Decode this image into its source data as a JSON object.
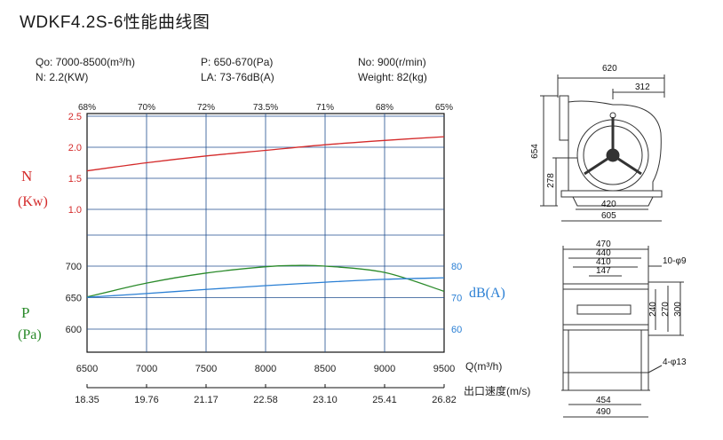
{
  "title": "WDKF4.2S-6性能曲线图",
  "specs": {
    "flow": "Qo: 7000-8500(m³/h)",
    "power": "N: 2.2(KW)",
    "pressure": "P: 650-670(Pa)",
    "noise": "LA: 73-76dB(A)",
    "speed": "No: 900(r/min)",
    "weight": "Weight: 82(kg)"
  },
  "colors": {
    "power": "#d42a2a",
    "pressure": "#2a8a2a",
    "noise": "#2a7fd4",
    "grid": "#1f4e8f",
    "axis": "#111111"
  },
  "chart_data": {
    "type": "line",
    "x_label": "Q(m³/h)",
    "x": [
      6500,
      7000,
      7500,
      8000,
      8500,
      9000,
      9500
    ],
    "x_tick_labels": [
      "6500",
      "7000",
      "7500",
      "8000",
      "8500",
      "9000",
      "9500"
    ],
    "efficiency_labels": [
      "68%",
      "70%",
      "72%",
      "73.5%",
      "71%",
      "68%",
      "65%"
    ],
    "outlet_velocity": {
      "label": "出口速度(m/s)",
      "values": [
        "18.35",
        "19.76",
        "21.17",
        "22.58",
        "23.10",
        "25.41",
        "26.82"
      ]
    },
    "n_axis": {
      "label_line1": "N",
      "label_line2": "(Kw)",
      "ticks": [
        "2.5",
        "2.0",
        "1.5",
        "1.0"
      ],
      "range": [
        1.0,
        2.5
      ]
    },
    "p_axis": {
      "label_line1": "P",
      "label_line2": "(Pa)",
      "ticks": [
        "700",
        "650",
        "600"
      ],
      "range": [
        600,
        700
      ]
    },
    "db_axis": {
      "label": "dB(A)",
      "ticks": [
        "80",
        "70",
        "60"
      ],
      "range": [
        60,
        80
      ]
    },
    "series": [
      {
        "key": "power",
        "axis": "n",
        "x": [
          6500,
          7000,
          7500,
          8000,
          8500,
          9000,
          9500
        ],
        "values": [
          1.62,
          1.75,
          1.86,
          1.95,
          2.04,
          2.11,
          2.17
        ]
      },
      {
        "key": "pressure",
        "axis": "p",
        "x": [
          6500,
          7000,
          7500,
          8000,
          8250,
          8500,
          9000,
          9500
        ],
        "values": [
          651,
          673,
          689,
          699,
          701,
          700,
          690,
          660
        ]
      },
      {
        "key": "noise",
        "axis": "db",
        "x": [
          6500,
          7000,
          7500,
          8000,
          8500,
          9000,
          9500
        ],
        "values": [
          70.1,
          71.3,
          72.6,
          73.8,
          74.9,
          75.8,
          76.3
        ]
      }
    ]
  },
  "drawings": {
    "front": {
      "dims": [
        "620",
        "312",
        "654",
        "278",
        "420",
        "605"
      ]
    },
    "side": {
      "dims": [
        "470",
        "440",
        "410",
        "147",
        "10-φ9",
        "240",
        "270",
        "300",
        "4-φ13",
        "454",
        "490"
      ]
    }
  }
}
